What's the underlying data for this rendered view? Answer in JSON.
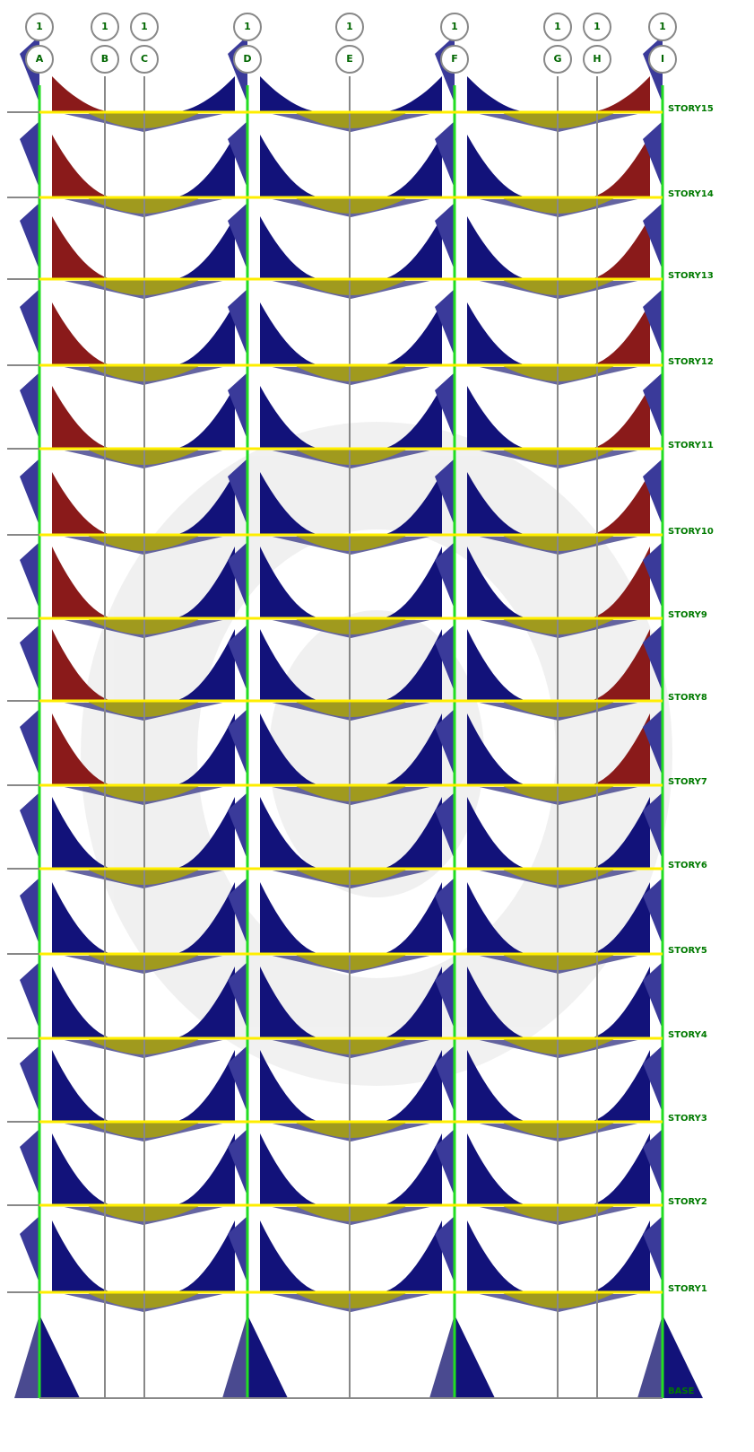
{
  "grid_lines": [
    {
      "row": "1",
      "label": "A"
    },
    {
      "row": "1",
      "label": "B"
    },
    {
      "row": "1",
      "label": "C"
    },
    {
      "row": "1",
      "label": "D"
    },
    {
      "row": "1",
      "label": "E"
    },
    {
      "row": "1",
      "label": "F"
    },
    {
      "row": "1",
      "label": "G"
    },
    {
      "row": "1",
      "label": "H"
    },
    {
      "row": "1",
      "label": "I"
    }
  ],
  "stories": [
    "STORY15",
    "STORY14",
    "STORY13",
    "STORY12",
    "STORY11",
    "STORY10",
    "STORY9",
    "STORY8",
    "STORY7",
    "STORY6",
    "STORY5",
    "STORY4",
    "STORY3",
    "STORY2",
    "STORY1",
    "BASE"
  ]
}
